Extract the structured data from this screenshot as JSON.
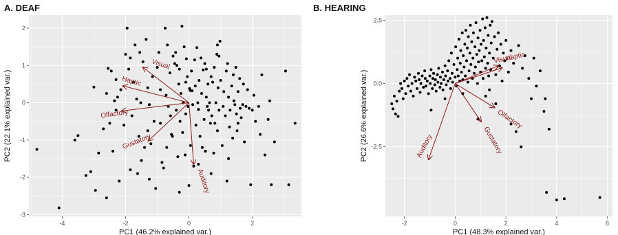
{
  "panels": [
    {
      "title": "A. DEAF"
    },
    {
      "title": "B. HEARING"
    }
  ],
  "colors": {
    "panel_bg": "#ebebeb",
    "grid": "#ffffff",
    "points": "#000000",
    "arrows": "#8b1a1a"
  },
  "chart_data": [
    {
      "type": "scatter",
      "title": "A. DEAF",
      "xlabel": "PC1 (46.2% explained var.)",
      "ylabel": "PC2 (22.1% explained var.)",
      "xlim": [
        -5.05,
        3.55
      ],
      "ylim": [
        -3.05,
        2.35
      ],
      "xticks": [
        -4,
        -2,
        0,
        2
      ],
      "xtick_labels": [
        "-4",
        "-2",
        "0",
        "2"
      ],
      "yticks": [
        -3,
        -2,
        -1,
        0,
        1,
        2
      ],
      "ytick_labels": [
        "-3",
        "-2",
        "-1",
        "0",
        "1",
        "2"
      ],
      "grid": true,
      "vectors": [
        {
          "label": "Visual",
          "x": -1.45,
          "y": 0.95
        },
        {
          "label": "Haptic",
          "x": -2.08,
          "y": 0.45
        },
        {
          "label": "Olfactory",
          "x": -2.12,
          "y": -0.22
        },
        {
          "label": "Gustatory",
          "x": -1.28,
          "y": -1.02
        },
        {
          "label": "Auditory",
          "x": 0.15,
          "y": -1.65
        }
      ],
      "points": [
        [
          -4.8,
          -1.25
        ],
        [
          -4.1,
          -2.82
        ],
        [
          -3.6,
          -1.0
        ],
        [
          -3.5,
          -0.88
        ],
        [
          -3.25,
          -1.95
        ],
        [
          -3.1,
          -1.85
        ],
        [
          -3.0,
          0.42
        ],
        [
          -2.95,
          -2.35
        ],
        [
          -2.85,
          -1.35
        ],
        [
          -2.7,
          -0.7
        ],
        [
          -2.6,
          -2.55
        ],
        [
          -2.55,
          0.92
        ],
        [
          -2.5,
          -0.55
        ],
        [
          -2.45,
          0.85
        ],
        [
          -2.4,
          -1.3
        ],
        [
          -2.35,
          0.05
        ],
        [
          -2.3,
          0.62
        ],
        [
          -2.3,
          -0.2
        ],
        [
          -2.25,
          0.15
        ],
        [
          -2.2,
          -2.1
        ],
        [
          -2.15,
          0.35
        ],
        [
          -2.05,
          -0.6
        ],
        [
          -2.0,
          1.3
        ],
        [
          -1.95,
          2.0
        ],
        [
          -1.9,
          0.9
        ],
        [
          -1.85,
          -1.8
        ],
        [
          -1.8,
          -0.35
        ],
        [
          -1.75,
          0.55
        ],
        [
          -1.7,
          1.55
        ],
        [
          -1.65,
          0.1
        ],
        [
          -1.62,
          -1.9
        ],
        [
          -1.58,
          -0.9
        ],
        [
          -1.55,
          1.35
        ],
        [
          -1.52,
          0.0
        ],
        [
          -1.5,
          -1.55
        ],
        [
          -1.45,
          1.1
        ],
        [
          -1.4,
          -1.2
        ],
        [
          -1.35,
          1.7
        ],
        [
          -1.3,
          0.4
        ],
        [
          -1.25,
          -0.05
        ],
        [
          -1.2,
          -1.1
        ],
        [
          -1.15,
          0.7
        ],
        [
          -1.1,
          -0.5
        ],
        [
          -1.05,
          -2.3
        ],
        [
          -1.0,
          0.95
        ],
        [
          -0.95,
          1.35
        ],
        [
          -0.9,
          -0.55
        ],
        [
          -0.85,
          -1.6
        ],
        [
          -0.8,
          -1.75
        ],
        [
          -0.75,
          2.0
        ],
        [
          -0.72,
          0.2
        ],
        [
          -0.68,
          1.55
        ],
        [
          -0.65,
          -0.1
        ],
        [
          -0.6,
          0.8
        ],
        [
          -0.55,
          -0.85
        ],
        [
          -0.52,
          -0.9
        ],
        [
          -0.5,
          1.25
        ],
        [
          -0.45,
          1.05
        ],
        [
          -0.42,
          1.35
        ],
        [
          -0.4,
          -0.2
        ],
        [
          -0.38,
          1.0
        ],
        [
          -0.35,
          -1.45
        ],
        [
          -0.32,
          0.5
        ],
        [
          -0.3,
          0.9
        ],
        [
          -0.28,
          -0.5
        ],
        [
          -0.25,
          0.25
        ],
        [
          -0.22,
          2.05
        ],
        [
          -0.2,
          -0.8
        ],
        [
          -0.18,
          0.0
        ],
        [
          -0.15,
          1.5
        ],
        [
          -0.12,
          -1.4
        ],
        [
          -0.1,
          -0.3
        ],
        [
          -0.08,
          1.18
        ],
        [
          -0.05,
          0.7
        ],
        [
          -0.03,
          -0.1
        ],
        [
          0.0,
          -2.22
        ],
        [
          0.02,
          0.38
        ],
        [
          0.04,
          0.33
        ],
        [
          0.05,
          -1.15
        ],
        [
          0.08,
          0.85
        ],
        [
          0.1,
          0.32
        ],
        [
          0.12,
          -0.05
        ],
        [
          0.15,
          -1.7
        ],
        [
          0.18,
          1.15
        ],
        [
          0.2,
          0.45
        ],
        [
          0.22,
          -0.6
        ],
        [
          0.25,
          1.48
        ],
        [
          0.28,
          0.0
        ],
        [
          0.3,
          -0.18
        ],
        [
          0.32,
          0.6
        ],
        [
          0.35,
          -0.9
        ],
        [
          0.38,
          1.2
        ],
        [
          0.4,
          0.25
        ],
        [
          0.42,
          -1.2
        ],
        [
          0.45,
          0.88
        ],
        [
          0.48,
          -0.45
        ],
        [
          0.5,
          1.05
        ],
        [
          0.52,
          -1.3
        ],
        [
          0.55,
          0.15
        ],
        [
          0.58,
          -0.1
        ],
        [
          0.6,
          0.5
        ],
        [
          0.62,
          -0.2
        ],
        [
          0.65,
          0.0
        ],
        [
          0.68,
          -0.55
        ],
        [
          0.7,
          0.7
        ],
        [
          0.72,
          -0.35
        ],
        [
          0.75,
          0.55
        ],
        [
          0.78,
          -1.35
        ],
        [
          0.8,
          0.95
        ],
        [
          0.82,
          -0.55
        ],
        [
          0.85,
          0.0
        ],
        [
          0.88,
          1.3
        ],
        [
          0.9,
          -0.75
        ],
        [
          0.92,
          0.4
        ],
        [
          0.95,
          -0.2
        ],
        [
          0.98,
          1.65
        ],
        [
          1.0,
          0.6
        ],
        [
          1.05,
          -1.15
        ],
        [
          1.08,
          -0.1
        ],
        [
          1.1,
          0.3
        ],
        [
          1.15,
          -0.35
        ],
        [
          1.18,
          0.85
        ],
        [
          1.2,
          -2.1
        ],
        [
          1.22,
          1.05
        ],
        [
          1.25,
          0.15
        ],
        [
          1.28,
          -0.65
        ],
        [
          1.3,
          -0.2
        ],
        [
          1.35,
          0.45
        ],
        [
          1.38,
          -0.95
        ],
        [
          1.4,
          0.75
        ],
        [
          1.42,
          0.05
        ],
        [
          1.45,
          -0.05
        ],
        [
          1.48,
          0.95
        ],
        [
          1.5,
          -0.3
        ],
        [
          1.52,
          -0.75
        ],
        [
          1.55,
          0.3
        ],
        [
          1.6,
          0.65
        ],
        [
          1.62,
          -0.15
        ],
        [
          1.65,
          -0.4
        ],
        [
          1.7,
          -0.05
        ],
        [
          1.72,
          0.5
        ],
        [
          1.75,
          -1.05
        ],
        [
          1.8,
          -0.1
        ],
        [
          1.85,
          0.35
        ],
        [
          1.9,
          -0.15
        ],
        [
          1.95,
          -2.2
        ],
        [
          2.0,
          -0.2
        ],
        [
          2.05,
          0.2
        ],
        [
          2.1,
          -0.5
        ],
        [
          2.2,
          -0.1
        ],
        [
          2.25,
          -0.85
        ],
        [
          2.3,
          0.75
        ],
        [
          2.4,
          -1.4
        ],
        [
          2.5,
          -0.45
        ],
        [
          2.55,
          0.05
        ],
        [
          2.6,
          -2.2
        ],
        [
          2.7,
          -1.05
        ],
        [
          3.05,
          0.85
        ],
        [
          3.15,
          -2.2
        ],
        [
          3.35,
          -0.55
        ],
        [
          -0.7,
          -1.2
        ],
        [
          -1.3,
          -0.75
        ],
        [
          -0.9,
          0.35
        ],
        [
          0.55,
          0.9
        ],
        [
          0.95,
          1.25
        ],
        [
          1.55,
          -0.55
        ],
        [
          -0.58,
          -0.35
        ],
        [
          0.3,
          -1.65
        ],
        [
          -1.85,
          1.2
        ],
        [
          -2.6,
          0.25
        ],
        [
          0.7,
          -1.9
        ],
        [
          1.25,
          -1.5
        ],
        [
          -0.3,
          -2.4
        ],
        [
          -1.25,
          -2.05
        ],
        [
          0.9,
          1.55
        ],
        [
          -0.1,
          0.55
        ]
      ]
    },
    {
      "type": "scatter",
      "title": "B. HEARING",
      "xlabel": "PC1 (48.3% explained var.)",
      "ylabel": "PC2 (26.6% explained var.)",
      "xlim": [
        -2.75,
        6.2
      ],
      "ylim": [
        -5.25,
        2.7
      ],
      "xticks": [
        -2,
        0,
        2,
        4,
        6
      ],
      "xtick_labels": [
        "-2",
        "0",
        "2",
        "4",
        "6"
      ],
      "yticks": [
        -2.5,
        0.0,
        2.5
      ],
      "ytick_labels": [
        "-2.5",
        "0.0",
        "2.5"
      ],
      "grid": true,
      "vectors": [
        {
          "label": "Visual",
          "x": 1.7,
          "y": 0.7
        },
        {
          "label": "Haptic",
          "x": 1.85,
          "y": 0.62
        },
        {
          "label": "Olfactory",
          "x": 1.55,
          "y": -0.95
        },
        {
          "label": "Gustatory",
          "x": 1.02,
          "y": -1.5
        },
        {
          "label": "Auditory",
          "x": -1.05,
          "y": -3.0
        }
      ],
      "points": [
        [
          -2.5,
          -0.8
        ],
        [
          -2.45,
          -1.0
        ],
        [
          -2.4,
          -0.5
        ],
        [
          -2.35,
          -1.2
        ],
        [
          -2.3,
          -0.7
        ],
        [
          -2.25,
          -1.3
        ],
        [
          -2.2,
          -0.3
        ],
        [
          -2.15,
          0.0
        ],
        [
          -2.1,
          -0.2
        ],
        [
          -2.05,
          -0.6
        ],
        [
          -2.0,
          0.1
        ],
        [
          -1.95,
          -0.4
        ],
        [
          -1.9,
          0.2
        ],
        [
          -1.85,
          -0.1
        ],
        [
          -1.8,
          0.35
        ],
        [
          -1.75,
          -0.3
        ],
        [
          -1.7,
          0.0
        ],
        [
          -1.65,
          -0.5
        ],
        [
          -1.6,
          0.25
        ],
        [
          -1.55,
          0.1
        ],
        [
          -1.5,
          -0.2
        ],
        [
          -1.45,
          0.4
        ],
        [
          -1.42,
          0.15
        ],
        [
          -1.38,
          -0.35
        ],
        [
          -1.35,
          0.0
        ],
        [
          -1.3,
          0.3
        ],
        [
          -1.25,
          -0.15
        ],
        [
          -1.2,
          0.5
        ],
        [
          -1.18,
          0.2
        ],
        [
          -1.15,
          -0.1
        ],
        [
          -1.1,
          0.1
        ],
        [
          -1.05,
          -0.4
        ],
        [
          -1.0,
          0.3
        ],
        [
          -0.98,
          0.0
        ],
        [
          -0.95,
          0.55
        ],
        [
          -0.9,
          -0.2
        ],
        [
          -0.88,
          0.2
        ],
        [
          -0.85,
          0.4
        ],
        [
          -0.8,
          -0.05
        ],
        [
          -0.78,
          0.15
        ],
        [
          -0.75,
          -0.3
        ],
        [
          -0.7,
          0.35
        ],
        [
          -0.68,
          0.05
        ],
        [
          -0.65,
          0.6
        ],
        [
          -0.6,
          -0.15
        ],
        [
          -0.58,
          0.25
        ],
        [
          -0.55,
          0.0
        ],
        [
          -0.5,
          0.45
        ],
        [
          -0.48,
          -0.25
        ],
        [
          -0.45,
          0.15
        ],
        [
          -0.4,
          0.7
        ],
        [
          -0.38,
          0.3
        ],
        [
          -0.35,
          -0.05
        ],
        [
          -0.3,
          0.5
        ],
        [
          -0.28,
          0.1
        ],
        [
          -0.25,
          0.9
        ],
        [
          -0.2,
          0.2
        ],
        [
          -0.18,
          -0.2
        ],
        [
          -0.15,
          1.2
        ],
        [
          -0.12,
          0.4
        ],
        [
          -0.1,
          0.05
        ],
        [
          -0.05,
          0.75
        ],
        [
          0.0,
          0.25
        ],
        [
          0.02,
          1.45
        ],
        [
          0.05,
          -0.1
        ],
        [
          0.08,
          0.55
        ],
        [
          0.1,
          1.0
        ],
        [
          0.12,
          0.3
        ],
        [
          0.15,
          1.75
        ],
        [
          0.18,
          0.1
        ],
        [
          0.2,
          0.8
        ],
        [
          0.22,
          1.3
        ],
        [
          0.25,
          0.45
        ],
        [
          0.28,
          2.0
        ],
        [
          0.3,
          0.15
        ],
        [
          0.32,
          1.1
        ],
        [
          0.35,
          0.65
        ],
        [
          0.38,
          1.55
        ],
        [
          0.4,
          0.3
        ],
        [
          0.42,
          2.1
        ],
        [
          0.45,
          0.9
        ],
        [
          0.48,
          1.4
        ],
        [
          0.5,
          0.05
        ],
        [
          0.52,
          1.85
        ],
        [
          0.55,
          0.5
        ],
        [
          0.58,
          1.2
        ],
        [
          0.6,
          2.3
        ],
        [
          0.62,
          0.75
        ],
        [
          0.65,
          1.65
        ],
        [
          0.68,
          0.2
        ],
        [
          0.7,
          1.0
        ],
        [
          0.72,
          2.0
        ],
        [
          0.75,
          0.4
        ],
        [
          0.78,
          1.45
        ],
        [
          0.8,
          0.65
        ],
        [
          0.82,
          2.4
        ],
        [
          0.85,
          1.15
        ],
        [
          0.88,
          0.0
        ],
        [
          0.9,
          1.8
        ],
        [
          0.92,
          0.85
        ],
        [
          0.95,
          1.3
        ],
        [
          0.98,
          2.1
        ],
        [
          1.0,
          0.45
        ],
        [
          1.02,
          1.55
        ],
        [
          1.05,
          0.9
        ],
        [
          1.08,
          2.55
        ],
        [
          1.1,
          0.2
        ],
        [
          1.12,
          1.7
        ],
        [
          1.15,
          1.05
        ],
        [
          1.18,
          2.2
        ],
        [
          1.2,
          0.6
        ],
        [
          1.22,
          1.4
        ],
        [
          1.25,
          2.6
        ],
        [
          1.28,
          0.8
        ],
        [
          1.3,
          1.9
        ],
        [
          1.32,
          0.3
        ],
        [
          1.35,
          1.2
        ],
        [
          1.38,
          2.3
        ],
        [
          1.4,
          0.55
        ],
        [
          1.42,
          1.6
        ],
        [
          1.45,
          2.45
        ],
        [
          1.5,
          1.0
        ],
        [
          1.55,
          1.85
        ],
        [
          1.6,
          0.35
        ],
        [
          1.65,
          1.35
        ],
        [
          1.7,
          2.0
        ],
        [
          1.75,
          0.7
        ],
        [
          1.8,
          1.55
        ],
        [
          1.85,
          0.1
        ],
        [
          1.9,
          1.2
        ],
        [
          1.95,
          0.9
        ],
        [
          2.0,
          1.7
        ],
        [
          2.1,
          0.45
        ],
        [
          2.2,
          1.3
        ],
        [
          2.3,
          0.8
        ],
        [
          2.5,
          1.5
        ],
        [
          2.65,
          0.6
        ],
        [
          2.75,
          1.1
        ],
        [
          2.9,
          0.2
        ],
        [
          3.0,
          -0.6
        ],
        [
          3.1,
          1.0
        ],
        [
          3.2,
          -0.1
        ],
        [
          3.35,
          0.5
        ],
        [
          3.5,
          -1.1
        ],
        [
          3.55,
          -0.6
        ],
        [
          3.7,
          -1.8
        ],
        [
          -0.4,
          -0.6
        ],
        [
          0.3,
          -0.4
        ],
        [
          1.2,
          -0.5
        ],
        [
          1.6,
          -0.8
        ],
        [
          2.2,
          -1.6
        ],
        [
          2.4,
          -1.9
        ],
        [
          2.6,
          -2.5
        ],
        [
          0.9,
          -1.4
        ],
        [
          3.6,
          -4.3
        ],
        [
          4.0,
          -4.6
        ],
        [
          4.3,
          -4.55
        ],
        [
          5.7,
          -4.5
        ],
        [
          -0.95,
          -1.05
        ],
        [
          1.35,
          -0.25
        ]
      ]
    }
  ]
}
